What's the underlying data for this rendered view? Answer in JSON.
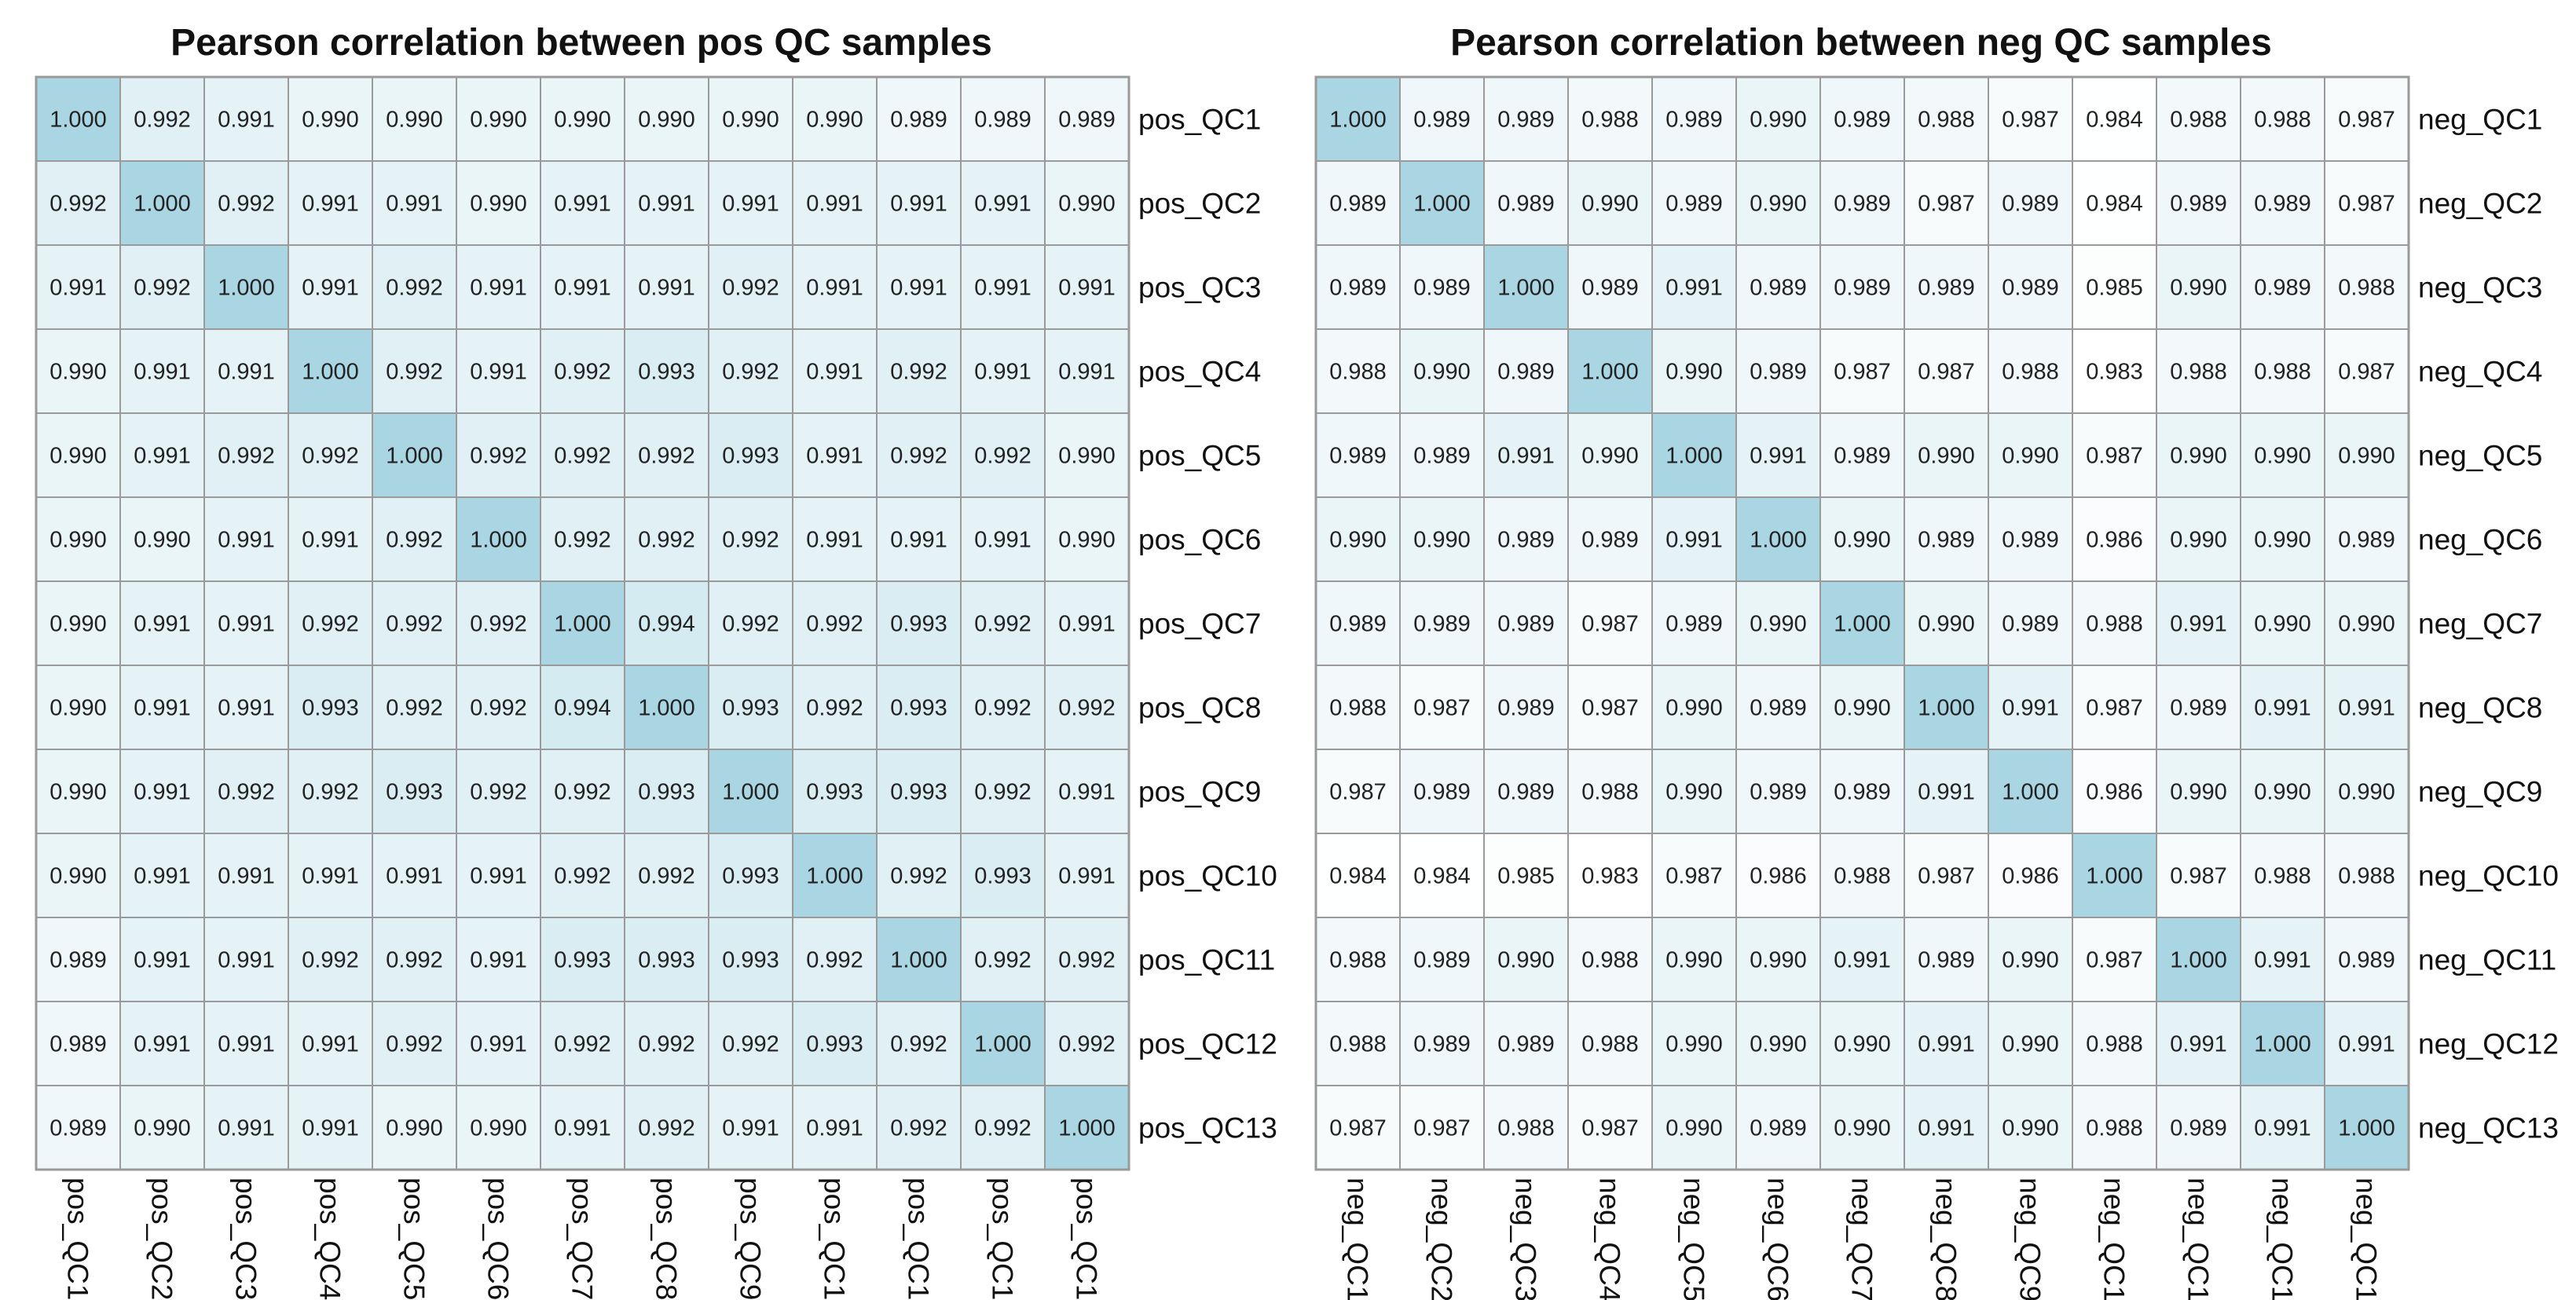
{
  "colors": {
    "low": "#ffffff",
    "high": "#a9d6e2",
    "grid": "#9a9a9a"
  },
  "chart_data": [
    {
      "type": "heatmap",
      "title": "Pearson correlation between pos QC samples",
      "labels": [
        "pos_QC1",
        "pos_QC2",
        "pos_QC3",
        "pos_QC4",
        "pos_QC5",
        "pos_QC6",
        "pos_QC7",
        "pos_QC8",
        "pos_QC9",
        "pos_QC10",
        "pos_QC11",
        "pos_QC12",
        "pos_QC13"
      ],
      "color_range": [
        0.983,
        1.0
      ],
      "values": [
        [
          1.0,
          0.992,
          0.991,
          0.99,
          0.99,
          0.99,
          0.99,
          0.99,
          0.99,
          0.99,
          0.989,
          0.989,
          0.989
        ],
        [
          0.992,
          1.0,
          0.992,
          0.991,
          0.991,
          0.99,
          0.991,
          0.991,
          0.991,
          0.991,
          0.991,
          0.991,
          0.99
        ],
        [
          0.991,
          0.992,
          1.0,
          0.991,
          0.992,
          0.991,
          0.991,
          0.991,
          0.992,
          0.991,
          0.991,
          0.991,
          0.991
        ],
        [
          0.99,
          0.991,
          0.991,
          1.0,
          0.992,
          0.991,
          0.992,
          0.993,
          0.992,
          0.991,
          0.992,
          0.991,
          0.991
        ],
        [
          0.99,
          0.991,
          0.992,
          0.992,
          1.0,
          0.992,
          0.992,
          0.992,
          0.993,
          0.991,
          0.992,
          0.992,
          0.99
        ],
        [
          0.99,
          0.99,
          0.991,
          0.991,
          0.992,
          1.0,
          0.992,
          0.992,
          0.992,
          0.991,
          0.991,
          0.991,
          0.99
        ],
        [
          0.99,
          0.991,
          0.991,
          0.992,
          0.992,
          0.992,
          1.0,
          0.994,
          0.992,
          0.992,
          0.993,
          0.992,
          0.991
        ],
        [
          0.99,
          0.991,
          0.991,
          0.993,
          0.992,
          0.992,
          0.994,
          1.0,
          0.993,
          0.992,
          0.993,
          0.992,
          0.992
        ],
        [
          0.99,
          0.991,
          0.992,
          0.992,
          0.993,
          0.992,
          0.992,
          0.993,
          1.0,
          0.993,
          0.993,
          0.992,
          0.991
        ],
        [
          0.99,
          0.991,
          0.991,
          0.991,
          0.991,
          0.991,
          0.992,
          0.992,
          0.993,
          1.0,
          0.992,
          0.993,
          0.991
        ],
        [
          0.989,
          0.991,
          0.991,
          0.992,
          0.992,
          0.991,
          0.993,
          0.993,
          0.993,
          0.992,
          1.0,
          0.992,
          0.992
        ],
        [
          0.989,
          0.991,
          0.991,
          0.991,
          0.992,
          0.991,
          0.992,
          0.992,
          0.992,
          0.993,
          0.992,
          1.0,
          0.992
        ],
        [
          0.989,
          0.99,
          0.991,
          0.991,
          0.99,
          0.99,
          0.991,
          0.992,
          0.991,
          0.991,
          0.992,
          0.992,
          1.0
        ]
      ]
    },
    {
      "type": "heatmap",
      "title": "Pearson correlation between neg QC samples",
      "labels": [
        "neg_QC1",
        "neg_QC2",
        "neg_QC3",
        "neg_QC4",
        "neg_QC5",
        "neg_QC6",
        "neg_QC7",
        "neg_QC8",
        "neg_QC9",
        "neg_QC10",
        "neg_QC11",
        "neg_QC12",
        "neg_QC13"
      ],
      "color_range": [
        0.983,
        1.0
      ],
      "values": [
        [
          1.0,
          0.989,
          0.989,
          0.988,
          0.989,
          0.99,
          0.989,
          0.988,
          0.987,
          0.984,
          0.988,
          0.988,
          0.987
        ],
        [
          0.989,
          1.0,
          0.989,
          0.99,
          0.989,
          0.99,
          0.989,
          0.987,
          0.989,
          0.984,
          0.989,
          0.989,
          0.987
        ],
        [
          0.989,
          0.989,
          1.0,
          0.989,
          0.991,
          0.989,
          0.989,
          0.989,
          0.989,
          0.985,
          0.99,
          0.989,
          0.988
        ],
        [
          0.988,
          0.99,
          0.989,
          1.0,
          0.99,
          0.989,
          0.987,
          0.987,
          0.988,
          0.983,
          0.988,
          0.988,
          0.987
        ],
        [
          0.989,
          0.989,
          0.991,
          0.99,
          1.0,
          0.991,
          0.989,
          0.99,
          0.99,
          0.987,
          0.99,
          0.99,
          0.99
        ],
        [
          0.99,
          0.99,
          0.989,
          0.989,
          0.991,
          1.0,
          0.99,
          0.989,
          0.989,
          0.986,
          0.99,
          0.99,
          0.989
        ],
        [
          0.989,
          0.989,
          0.989,
          0.987,
          0.989,
          0.99,
          1.0,
          0.99,
          0.989,
          0.988,
          0.991,
          0.99,
          0.99
        ],
        [
          0.988,
          0.987,
          0.989,
          0.987,
          0.99,
          0.989,
          0.99,
          1.0,
          0.991,
          0.987,
          0.989,
          0.991,
          0.991
        ],
        [
          0.987,
          0.989,
          0.989,
          0.988,
          0.99,
          0.989,
          0.989,
          0.991,
          1.0,
          0.986,
          0.99,
          0.99,
          0.99
        ],
        [
          0.984,
          0.984,
          0.985,
          0.983,
          0.987,
          0.986,
          0.988,
          0.987,
          0.986,
          1.0,
          0.987,
          0.988,
          0.988
        ],
        [
          0.988,
          0.989,
          0.99,
          0.988,
          0.99,
          0.99,
          0.991,
          0.989,
          0.99,
          0.987,
          1.0,
          0.991,
          0.989
        ],
        [
          0.988,
          0.989,
          0.989,
          0.988,
          0.99,
          0.99,
          0.99,
          0.991,
          0.99,
          0.988,
          0.991,
          1.0,
          0.991
        ],
        [
          0.987,
          0.987,
          0.988,
          0.987,
          0.99,
          0.989,
          0.99,
          0.991,
          0.99,
          0.988,
          0.989,
          0.991,
          1.0
        ]
      ]
    }
  ]
}
